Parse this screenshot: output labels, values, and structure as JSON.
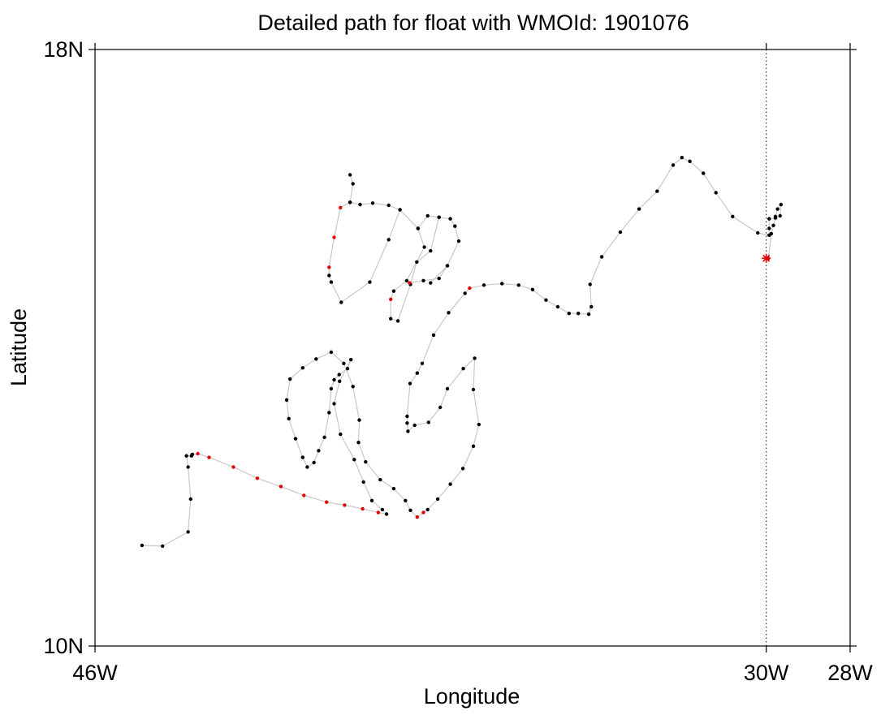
{
  "chart_data": {
    "type": "scatter",
    "title": "Detailed path for float with WMOId: 1901076",
    "xlabel": "Longitude",
    "ylabel": "Latitude",
    "xlim": [
      -46,
      -28
    ],
    "ylim": [
      10,
      18
    ],
    "x_ticks": [
      {
        "value": -46,
        "label": "46W"
      },
      {
        "value": -30,
        "label": "30W"
      },
      {
        "value": -28,
        "label": "28W"
      }
    ],
    "y_ticks": [
      {
        "value": 10,
        "label": "10N"
      },
      {
        "value": 18,
        "label": "18N"
      }
    ],
    "reference_line": {
      "x": -30,
      "style": "dotted"
    },
    "grid": false,
    "colors": {
      "path": "#c8c8c8",
      "profile": "#000000",
      "highlight": "#e00000",
      "start_marker": "#e00000"
    },
    "start_marker": {
      "lon": -30.0,
      "lat": 15.2,
      "symbol": "asterisk"
    },
    "track": [
      {
        "lon": -29.95,
        "lat": 15.2,
        "hl": true
      },
      {
        "lon": -29.88,
        "lat": 15.53
      },
      {
        "lon": -29.83,
        "lat": 15.64
      },
      {
        "lon": -29.78,
        "lat": 15.76
      },
      {
        "lon": -29.73,
        "lat": 15.86
      },
      {
        "lon": -29.65,
        "lat": 15.92
      },
      {
        "lon": -29.67,
        "lat": 15.77
      },
      {
        "lon": -29.78,
        "lat": 15.74
      },
      {
        "lon": -29.93,
        "lat": 15.73
      },
      {
        "lon": -29.93,
        "lat": 15.6
      },
      {
        "lon": -29.93,
        "lat": 15.51
      },
      {
        "lon": -30.2,
        "lat": 15.54
      },
      {
        "lon": -30.8,
        "lat": 15.76
      },
      {
        "lon": -31.2,
        "lat": 16.08
      },
      {
        "lon": -31.5,
        "lat": 16.34
      },
      {
        "lon": -31.82,
        "lat": 16.5
      },
      {
        "lon": -32.01,
        "lat": 16.55
      },
      {
        "lon": -32.22,
        "lat": 16.45
      },
      {
        "lon": -32.6,
        "lat": 16.1
      },
      {
        "lon": -33.03,
        "lat": 15.86
      },
      {
        "lon": -33.48,
        "lat": 15.55
      },
      {
        "lon": -33.92,
        "lat": 15.22
      },
      {
        "lon": -34.2,
        "lat": 14.85
      },
      {
        "lon": -34.17,
        "lat": 14.55
      },
      {
        "lon": -34.23,
        "lat": 14.45
      },
      {
        "lon": -34.48,
        "lat": 14.46
      },
      {
        "lon": -34.7,
        "lat": 14.46
      },
      {
        "lon": -34.97,
        "lat": 14.55
      },
      {
        "lon": -35.25,
        "lat": 14.64
      },
      {
        "lon": -35.57,
        "lat": 14.78
      },
      {
        "lon": -35.9,
        "lat": 14.84
      },
      {
        "lon": -36.3,
        "lat": 14.86
      },
      {
        "lon": -36.73,
        "lat": 14.84
      },
      {
        "lon": -37.07,
        "lat": 14.8,
        "hl": true
      },
      {
        "lon": -37.18,
        "lat": 14.73
      },
      {
        "lon": -37.57,
        "lat": 14.47
      },
      {
        "lon": -37.93,
        "lat": 14.17
      },
      {
        "lon": -38.2,
        "lat": 13.79
      },
      {
        "lon": -38.32,
        "lat": 13.66
      },
      {
        "lon": -38.49,
        "lat": 13.52
      },
      {
        "lon": -38.56,
        "lat": 13.08
      },
      {
        "lon": -38.56,
        "lat": 12.99
      },
      {
        "lon": -38.54,
        "lat": 12.88
      },
      {
        "lon": -38.38,
        "lat": 12.96
      },
      {
        "lon": -38.05,
        "lat": 13.0
      },
      {
        "lon": -37.77,
        "lat": 13.2
      },
      {
        "lon": -37.6,
        "lat": 13.45
      },
      {
        "lon": -37.22,
        "lat": 13.72
      },
      {
        "lon": -36.95,
        "lat": 13.86
      },
      {
        "lon": -36.98,
        "lat": 13.44
      },
      {
        "lon": -36.85,
        "lat": 12.97
      },
      {
        "lon": -36.98,
        "lat": 12.68
      },
      {
        "lon": -37.23,
        "lat": 12.38
      },
      {
        "lon": -37.53,
        "lat": 12.17
      },
      {
        "lon": -37.83,
        "lat": 11.97
      },
      {
        "lon": -38.07,
        "lat": 11.83
      },
      {
        "lon": -38.17,
        "lat": 11.79,
        "hl": true
      },
      {
        "lon": -38.32,
        "lat": 11.73,
        "hl": true
      },
      {
        "lon": -38.48,
        "lat": 11.82
      },
      {
        "lon": -38.6,
        "lat": 11.95
      },
      {
        "lon": -38.88,
        "lat": 12.11
      },
      {
        "lon": -39.2,
        "lat": 12.23
      },
      {
        "lon": -39.55,
        "lat": 12.47
      },
      {
        "lon": -39.72,
        "lat": 12.73
      },
      {
        "lon": -39.7,
        "lat": 13.03
      },
      {
        "lon": -39.85,
        "lat": 13.48
      },
      {
        "lon": -40.07,
        "lat": 13.79
      },
      {
        "lon": -40.37,
        "lat": 13.94
      },
      {
        "lon": -40.73,
        "lat": 13.85
      },
      {
        "lon": -41.05,
        "lat": 13.73
      },
      {
        "lon": -41.35,
        "lat": 13.58
      },
      {
        "lon": -41.43,
        "lat": 13.3
      },
      {
        "lon": -41.38,
        "lat": 13.05
      },
      {
        "lon": -41.22,
        "lat": 12.78
      },
      {
        "lon": -41.05,
        "lat": 12.53
      },
      {
        "lon": -40.94,
        "lat": 12.4
      },
      {
        "lon": -40.78,
        "lat": 12.46
      },
      {
        "lon": -40.67,
        "lat": 12.62
      },
      {
        "lon": -40.53,
        "lat": 12.8
      },
      {
        "lon": -40.42,
        "lat": 13.13
      },
      {
        "lon": -40.37,
        "lat": 13.45
      },
      {
        "lon": -40.3,
        "lat": 13.57
      },
      {
        "lon": -40.18,
        "lat": 13.64
      },
      {
        "lon": -39.98,
        "lat": 13.72
      },
      {
        "lon": -39.9,
        "lat": 13.84
      },
      {
        "lon": -40.17,
        "lat": 13.55
      },
      {
        "lon": -40.3,
        "lat": 13.25
      },
      {
        "lon": -40.15,
        "lat": 12.84
      },
      {
        "lon": -39.82,
        "lat": 12.5
      },
      {
        "lon": -39.6,
        "lat": 12.2
      },
      {
        "lon": -39.4,
        "lat": 11.95
      },
      {
        "lon": -39.15,
        "lat": 11.83
      },
      {
        "lon": -39.05,
        "lat": 11.77
      },
      {
        "lon": -39.25,
        "lat": 11.79,
        "hl": true
      },
      {
        "lon": -39.62,
        "lat": 11.84,
        "hl": true
      },
      {
        "lon": -40.05,
        "lat": 11.89,
        "hl": true
      },
      {
        "lon": -40.48,
        "lat": 11.93,
        "hl": true
      },
      {
        "lon": -41.02,
        "lat": 12.02,
        "hl": true
      },
      {
        "lon": -41.57,
        "lat": 12.14,
        "hl": true
      },
      {
        "lon": -42.13,
        "lat": 12.25,
        "hl": true
      },
      {
        "lon": -42.7,
        "lat": 12.4,
        "hl": true
      },
      {
        "lon": -43.28,
        "lat": 12.53,
        "hl": true
      },
      {
        "lon": -43.55,
        "lat": 12.58,
        "hl": true
      },
      {
        "lon": -43.68,
        "lat": 12.57
      },
      {
        "lon": -43.7,
        "lat": 12.55
      },
      {
        "lon": -43.82,
        "lat": 12.55
      },
      {
        "lon": -43.78,
        "lat": 12.4
      },
      {
        "lon": -43.72,
        "lat": 11.97
      },
      {
        "lon": -43.78,
        "lat": 11.53
      },
      {
        "lon": -44.39,
        "lat": 11.34
      },
      {
        "lon": -44.88,
        "lat": 11.35
      }
    ],
    "extra_tracks": [
      [
        {
          "lon": -38.0,
          "lat": 14.87
        },
        {
          "lon": -37.6,
          "lat": 15.1
        },
        {
          "lon": -37.33,
          "lat": 15.43
        },
        {
          "lon": -37.42,
          "lat": 15.63
        },
        {
          "lon": -37.53,
          "lat": 15.73
        },
        {
          "lon": -37.8,
          "lat": 15.75
        },
        {
          "lon": -38.07,
          "lat": 15.77
        },
        {
          "lon": -38.3,
          "lat": 15.6
        },
        {
          "lon": -38.73,
          "lat": 15.85
        },
        {
          "lon": -39.0,
          "lat": 15.91
        },
        {
          "lon": -39.38,
          "lat": 15.94
        },
        {
          "lon": -39.68,
          "lat": 15.92
        },
        {
          "lon": -39.92,
          "lat": 15.95
        },
        {
          "lon": -40.15,
          "lat": 15.88,
          "hl": true
        },
        {
          "lon": -40.3,
          "lat": 15.48,
          "hl": true
        },
        {
          "lon": -40.42,
          "lat": 15.08,
          "hl": true
        },
        {
          "lon": -40.42,
          "lat": 14.97
        },
        {
          "lon": -40.37,
          "lat": 14.88
        },
        {
          "lon": -40.13,
          "lat": 14.61
        },
        {
          "lon": -39.45,
          "lat": 14.88
        },
        {
          "lon": -39.0,
          "lat": 15.45
        },
        {
          "lon": -38.73,
          "lat": 15.85
        }
      ],
      [
        {
          "lon": -38.3,
          "lat": 15.6
        },
        {
          "lon": -38.15,
          "lat": 15.35
        },
        {
          "lon": -38.57,
          "lat": 14.9
        },
        {
          "lon": -38.88,
          "lat": 14.76
        },
        {
          "lon": -38.95,
          "lat": 14.65,
          "hl": true
        },
        {
          "lon": -38.95,
          "lat": 14.39
        },
        {
          "lon": -38.78,
          "lat": 14.36
        },
        {
          "lon": -38.48,
          "lat": 14.85
        },
        {
          "lon": -38.33,
          "lat": 15.15
        },
        {
          "lon": -38.0,
          "lat": 15.3
        },
        {
          "lon": -37.8,
          "lat": 15.75
        }
      ],
      [
        {
          "lon": -38.5,
          "lat": 14.87,
          "hl": true
        },
        {
          "lon": -38.17,
          "lat": 14.9
        },
        {
          "lon": -37.8,
          "lat": 14.93
        },
        {
          "lon": -37.6,
          "lat": 15.1
        }
      ],
      [
        {
          "lon": -39.92,
          "lat": 15.95
        },
        {
          "lon": -39.85,
          "lat": 16.2
        },
        {
          "lon": -39.92,
          "lat": 16.32
        }
      ]
    ]
  }
}
